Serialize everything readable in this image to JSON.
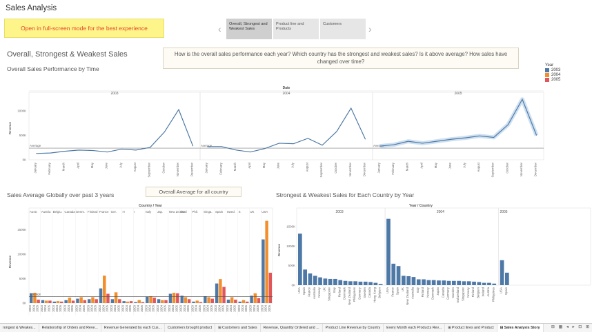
{
  "story_title": "Sales Analysis",
  "banner": "Open in full-screen mode for the best experience",
  "story_points": [
    {
      "label": "Overall, Strongest and Weakest Sales"
    },
    {
      "label": "Product line and Products"
    },
    {
      "label": "Customers"
    }
  ],
  "main_title": "Overall, Strongest & Weakest Sales",
  "caption": "How is the overall sales performance each year? Which country has the strongest and weakest sales? Is it above average? How sales have changed over time?",
  "sub_title": "Overall Sales Performance by Time",
  "legend": {
    "title": "Year",
    "items": [
      {
        "label": "2003",
        "color": "#4e79a7"
      },
      {
        "label": "2004",
        "color": "#f28e2b"
      },
      {
        "label": "2005",
        "color": "#e15759"
      }
    ]
  },
  "sec2_title": "Sales Average Globally over past 3 years",
  "avg_box": "Overall Average for all country",
  "sec3_title": "Strongest & Weakest Sales for Each Country by Year",
  "tabs": [
    {
      "label": "rongest & Weakes..."
    },
    {
      "label": "Relationship of Orders and Reve..."
    },
    {
      "label": "Revenue Generated by each Cus..."
    },
    {
      "label": "Customers brought product"
    },
    {
      "label": "⊞ Customers and Sales"
    },
    {
      "label": "Revenue, Quantity Ordered and ..."
    },
    {
      "label": "Product Line Revenue by Country"
    },
    {
      "label": "Every Month each Products Rev..."
    },
    {
      "label": "⊞ Product lines and Product"
    },
    {
      "label": "⊟ Sales Analysis Story"
    }
  ],
  "tab_controls": "⊞ ▦ ◂ ▸ ⊡ ⊞",
  "chart_data": [
    {
      "type": "line",
      "title": "Overall Sales Performance by Time",
      "header": "Date",
      "ylabel": "Revenue",
      "yticks": [
        "0K",
        "500K",
        "1000K"
      ],
      "ylim": [
        0,
        1300000
      ],
      "average_label": "Average",
      "average": 240000,
      "months": [
        "January",
        "February",
        "March",
        "April",
        "May",
        "June",
        "July",
        "August",
        "September",
        "October",
        "November",
        "December"
      ],
      "series": [
        {
          "name": "2003",
          "values": [
            130000,
            140000,
            175000,
            200000,
            190000,
            160000,
            220000,
            200000,
            255000,
            570000,
            1030000,
            280000
          ]
        },
        {
          "name": "2004",
          "values": [
            270000,
            270000,
            200000,
            160000,
            230000,
            340000,
            330000,
            440000,
            300000,
            580000,
            1060000,
            420000
          ]
        },
        {
          "name": "2005",
          "values": [
            280000,
            310000,
            380000,
            340000,
            380000,
            420000,
            450000,
            490000,
            460000,
            720000,
            1240000,
            500000
          ]
        }
      ]
    },
    {
      "type": "bar",
      "title": "Sales Average Globally over past 3 years",
      "header": "Country / Year",
      "ylabel": "Revenue",
      "yticks": [
        "0K",
        "500K",
        "1000K",
        "1500K"
      ],
      "ylim": [
        0,
        1800000
      ],
      "average_label": "Average",
      "average": 135000,
      "countries": [
        "Austr.",
        "Austria",
        "Belgiu.",
        "Canada",
        "Denm.",
        "Finland",
        "France",
        "Ger.",
        "H",
        "I",
        "Italy",
        "Jap.",
        "New Zealand",
        "Nor.",
        "Phil.",
        "Singa.",
        "Spain",
        "Swed.",
        "S",
        "UK",
        "USA"
      ],
      "values_2003": [
        200000,
        60000,
        30000,
        60000,
        90000,
        80000,
        300000,
        80000,
        40000,
        20000,
        130000,
        80000,
        190000,
        150000,
        30000,
        140000,
        400000,
        70000,
        30000,
        150000,
        1300000
      ],
      "values_2004": [
        210000,
        50000,
        40000,
        110000,
        120000,
        120000,
        560000,
        220000,
        30000,
        60000,
        140000,
        60000,
        210000,
        120000,
        50000,
        120000,
        490000,
        120000,
        60000,
        200000,
        1680000
      ],
      "values_2005": [
        70000,
        50000,
        30000,
        50000,
        60000,
        80000,
        190000,
        80000,
        40000,
        20000,
        110000,
        60000,
        200000,
        80000,
        20000,
        90000,
        330000,
        70000,
        30000,
        100000,
        620000
      ]
    },
    {
      "type": "bar",
      "title": "Strongest & Weakest Sales for Each Country by Year",
      "header": "Year / Country",
      "ylabel": "Revenue",
      "yticks": [
        "0K",
        "500K",
        "1000K",
        "1500K"
      ],
      "ylim": [
        0,
        1800000
      ],
      "groups": [
        {
          "year": "2003",
          "countries": [
            "USA",
            "Spain",
            "France",
            "Australia",
            "Norway",
            "UK",
            "Singapore",
            "Italy",
            "Finland",
            "Denmark",
            "New Zealand",
            "Philippines",
            "Germany",
            "Sweden",
            "Canada",
            "Hong Kong",
            "Belgium"
          ],
          "values": [
            1320000,
            400000,
            300000,
            240000,
            200000,
            170000,
            160000,
            160000,
            130000,
            110000,
            100000,
            100000,
            90000,
            90000,
            80000,
            60000,
            30000
          ]
        },
        {
          "year": "2004",
          "countries": [
            "USA",
            "France",
            "Spain",
            "UK",
            "New Zealand",
            "Australia",
            "Italy",
            "Finland",
            "Norway",
            "Denmark",
            "Japan",
            "Canada",
            "Germany",
            "Sweden",
            "Switzerland",
            "Singapore",
            "Norway ",
            "Finland ",
            "Belgium",
            "Ireland",
            "Austria",
            "Philippines"
          ],
          "values": [
            1700000,
            550000,
            490000,
            240000,
            230000,
            210000,
            150000,
            150000,
            130000,
            130000,
            120000,
            120000,
            110000,
            110000,
            110000,
            100000,
            100000,
            90000,
            80000,
            60000,
            60000,
            40000
          ]
        },
        {
          "year": "2005",
          "countries": [
            "USA",
            "Spain"
          ],
          "values": [
            640000,
            320000
          ]
        }
      ]
    }
  ]
}
